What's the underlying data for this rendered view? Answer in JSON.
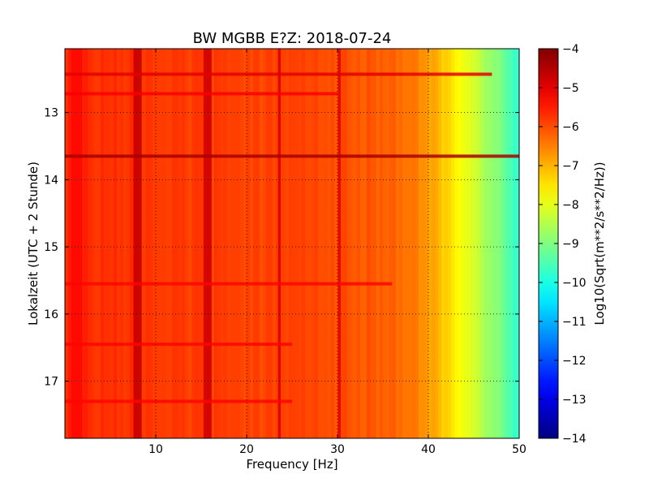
{
  "chart_data": {
    "type": "heatmap",
    "title": "BW MGBB E?Z: 2018-07-24",
    "xlabel": "Frequency [Hz]",
    "ylabel": "Lokalzeit (UTC + 2 Stunde)",
    "xlim": [
      0,
      50
    ],
    "ylim": [
      17.85,
      12.05
    ],
    "y_inverted": true,
    "xticks": [
      10,
      20,
      30,
      40,
      50
    ],
    "xtick_labels": [
      "10",
      "20",
      "30",
      "40",
      "50"
    ],
    "yticks": [
      13,
      14,
      15,
      16,
      17
    ],
    "ytick_labels": [
      "13",
      "14",
      "15",
      "16",
      "17"
    ],
    "grid": true,
    "grid_style": "dotted",
    "colormap": "jet",
    "colorbar": {
      "label": "Log10(Sqrt(m**2/s**2/Hz))",
      "vmin": -14,
      "vmax": -4,
      "ticks": [
        -4,
        -5,
        -6,
        -7,
        -8,
        -9,
        -10,
        -11,
        -12,
        -13,
        -14
      ],
      "tick_labels": [
        "−4",
        "−5",
        "−6",
        "−7",
        "−8",
        "−9",
        "−10",
        "−11",
        "−12",
        "−13",
        "−14"
      ]
    },
    "spectral_profile": {
      "frequency_hz": [
        0,
        5,
        10,
        15,
        20,
        25,
        30,
        35,
        38,
        40,
        42,
        44,
        46,
        48,
        50
      ],
      "level": [
        -5.6,
        -5.7,
        -5.8,
        -5.85,
        -5.9,
        -5.95,
        -6.0,
        -6.15,
        -6.4,
        -6.8,
        -7.3,
        -7.9,
        -8.5,
        -9.1,
        -9.8
      ]
    },
    "vertical_features": [
      {
        "frequency_hz": 8.0,
        "width_hz": 0.9,
        "level": -4.7
      },
      {
        "frequency_hz": 15.7,
        "width_hz": 0.9,
        "level": -4.8
      },
      {
        "frequency_hz": 23.6,
        "width_hz": 0.3,
        "level": -4.9
      },
      {
        "frequency_hz": 30.2,
        "width_hz": 0.3,
        "level": -5.0
      },
      {
        "frequency_hz": 1.3,
        "width_hz": 1.2,
        "level": -5.3
      }
    ],
    "horizontal_features": [
      {
        "time_h": 13.65,
        "level": -4.4,
        "f_max_hz": 50
      },
      {
        "time_h": 12.43,
        "level": -5.0,
        "f_max_hz": 47
      },
      {
        "time_h": 12.72,
        "level": -5.2,
        "f_max_hz": 30
      },
      {
        "time_h": 15.55,
        "level": -5.3,
        "f_max_hz": 36
      },
      {
        "time_h": 16.45,
        "level": -5.3,
        "f_max_hz": 25
      },
      {
        "time_h": 17.3,
        "level": -5.3,
        "f_max_hz": 25
      }
    ]
  }
}
